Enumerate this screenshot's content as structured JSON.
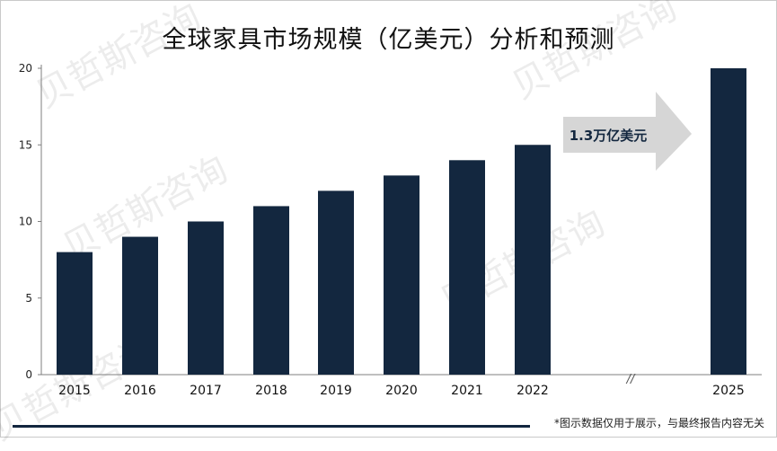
{
  "chart_data": {
    "type": "bar",
    "title": "全球家具市场规模（亿美元）分析和预测",
    "categories": [
      "2015",
      "2016",
      "2017",
      "2018",
      "2019",
      "2020",
      "2021",
      "2022",
      "2025"
    ],
    "values": [
      8,
      9,
      10,
      11,
      12,
      13,
      14,
      15,
      20
    ],
    "ylim": [
      0,
      20
    ],
    "yticks": [
      0,
      5,
      10,
      15,
      20
    ],
    "axis_break_symbol": "//",
    "annotation": "1.3万亿美元",
    "grid": false,
    "legend": "none",
    "colors": {
      "bar": "#13273f",
      "arrow": "#d6d6d6"
    }
  },
  "footnote": "*图示数据仅用于展示，与最终报告内容无关",
  "watermark": "贝哲斯咨询"
}
